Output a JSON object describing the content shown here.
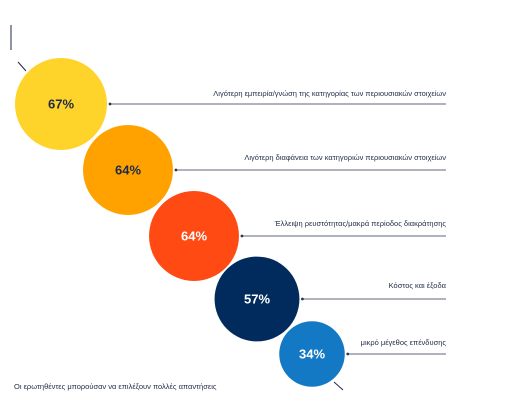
{
  "chart_data": {
    "type": "bubble",
    "categories": [
      "Λιγότερη εμπειρία/γνώση της κατηγορίας των περιουσιακών στοιχείων",
      "Λιγότερη διαφάνεια των κατηγοριών περιουσιακών στοιχείων",
      "Έλλειψη ρευστότητας/μακρά περίοδος διακράτησης",
      "Κόστος και έξοδα",
      "μικρό μέγεθος επένδυσης"
    ],
    "values": [
      67,
      64,
      64,
      57,
      34
    ],
    "value_labels": [
      "67%",
      "64%",
      "64%",
      "57%",
      "34%"
    ],
    "colors": [
      "#FFD42A",
      "#FFA200",
      "#FF4A14",
      "#002B5C",
      "#1479C4"
    ],
    "text_colors": [
      "#1f2a44",
      "#1f2a44",
      "#ffffff",
      "#ffffff",
      "#ffffff"
    ],
    "footnote": "Οι ερωτηθέντες μπορούσαν να επιλέξουν πολλές απαντήσεις"
  }
}
